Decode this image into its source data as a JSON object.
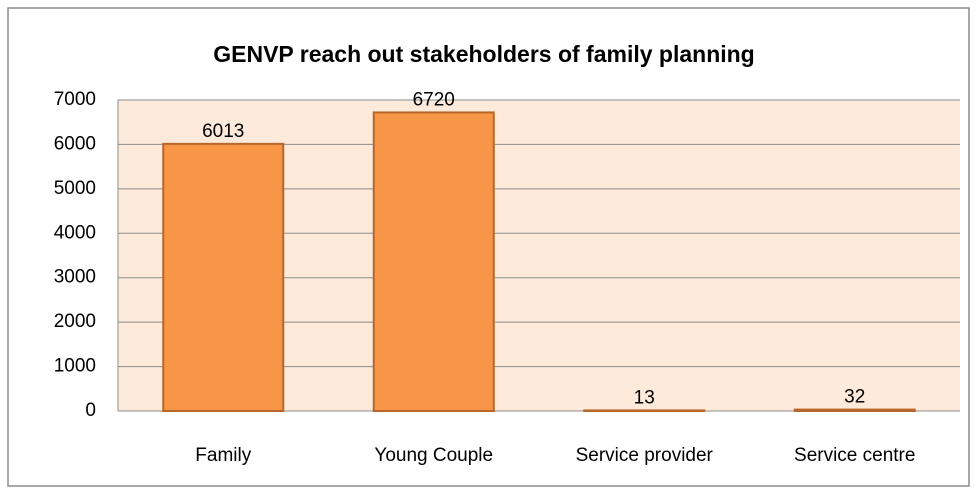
{
  "chart_data": {
    "type": "bar",
    "title": "GENVP reach out stakeholders of family planning",
    "categories": [
      "Family",
      "Young Couple",
      "Service provider",
      "Service centre"
    ],
    "values": [
      6013,
      6720,
      13,
      32
    ],
    "color": "#f79646",
    "ylim": [
      0,
      7000
    ],
    "yticks": [
      0,
      1000,
      2000,
      3000,
      4000,
      5000,
      6000,
      7000
    ],
    "grid": true
  }
}
